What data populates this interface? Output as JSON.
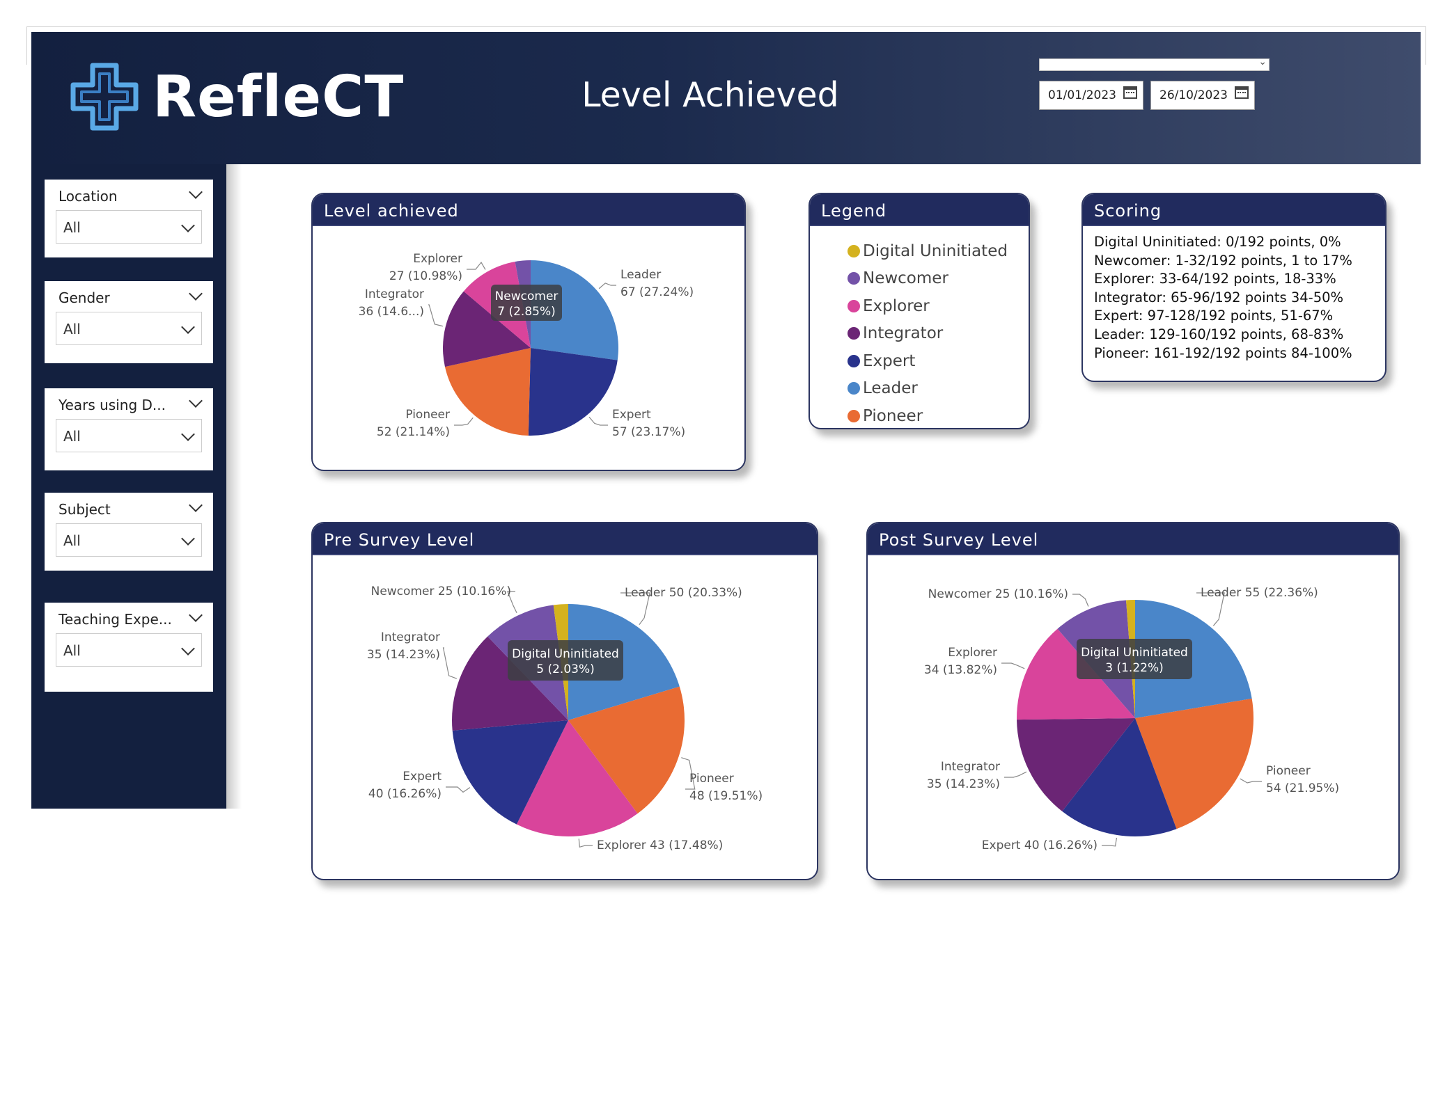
{
  "header": {
    "logo_text": "RefleCT",
    "title": "Level Achieved",
    "date_start": "01/01/2023",
    "date_end": "26/10/2023"
  },
  "slicers": [
    {
      "label": "Location",
      "value": "All"
    },
    {
      "label": "Gender",
      "value": "All"
    },
    {
      "label": "Years using D...",
      "value": "All"
    },
    {
      "label": "Subject",
      "value": "All"
    },
    {
      "label": "Teaching Expe...",
      "value": "All"
    }
  ],
  "colors": {
    "Digital Uninitiated": "#d4b21f",
    "Newcomer": "#7352a8",
    "Explorer": "#d9449b",
    "Integrator": "#6b2575",
    "Expert": "#29338c",
    "Leader": "#4a86c9",
    "Pioneer": "#e96b33"
  },
  "legend": {
    "title": "Legend",
    "items": [
      "Digital Uninitiated",
      "Newcomer",
      "Explorer",
      "Integrator",
      "Expert",
      "Leader",
      "Pioneer"
    ]
  },
  "scoring": {
    "title": "Scoring",
    "lines": [
      "Digital Uninitiated: 0/192 points, 0%",
      "Newcomer: 1-32/192 points, 1 to 17%",
      "Explorer: 33-64/192 points, 18-33%",
      "Integrator: 65-96/192 points 34-50%",
      "Expert: 97-128/192 points, 51-67%",
      "Leader: 129-160/192 points, 68-83%",
      "Pioneer: 161-192/192 points 84-100%"
    ]
  },
  "chart_data": [
    {
      "type": "pie",
      "title": "Level achieved",
      "slices": [
        {
          "name": "Leader",
          "value": 67,
          "pct": "27.24%"
        },
        {
          "name": "Expert",
          "value": 57,
          "pct": "23.17%"
        },
        {
          "name": "Pioneer",
          "value": 52,
          "pct": "21.14%"
        },
        {
          "name": "Integrator",
          "value": 36,
          "pct": "14.6..."
        },
        {
          "name": "Explorer",
          "value": 27,
          "pct": "10.98%"
        },
        {
          "name": "Newcomer",
          "value": 7,
          "pct": "2.85%"
        }
      ],
      "tooltip": {
        "line1": "Newcomer",
        "line2": "7 (2.85%)"
      }
    },
    {
      "type": "pie",
      "title": "Pre Survey Level",
      "slices": [
        {
          "name": "Leader",
          "value": 50,
          "pct": "20.33%"
        },
        {
          "name": "Pioneer",
          "value": 48,
          "pct": "19.51%"
        },
        {
          "name": "Explorer",
          "value": 43,
          "pct": "17.48%"
        },
        {
          "name": "Expert",
          "value": 40,
          "pct": "16.26%"
        },
        {
          "name": "Integrator",
          "value": 35,
          "pct": "14.23%"
        },
        {
          "name": "Newcomer",
          "value": 25,
          "pct": "10.16%"
        },
        {
          "name": "Digital Uninitiated",
          "value": 5,
          "pct": "2.03%"
        }
      ],
      "tooltip": {
        "line1": "Digital Uninitiated",
        "line2": "5 (2.03%)"
      }
    },
    {
      "type": "pie",
      "title": "Post Survey Level",
      "slices": [
        {
          "name": "Leader",
          "value": 55,
          "pct": "22.36%"
        },
        {
          "name": "Pioneer",
          "value": 54,
          "pct": "21.95%"
        },
        {
          "name": "Expert",
          "value": 40,
          "pct": "16.26%"
        },
        {
          "name": "Integrator",
          "value": 35,
          "pct": "14.23%"
        },
        {
          "name": "Explorer",
          "value": 34,
          "pct": "13.82%"
        },
        {
          "name": "Newcomer",
          "value": 25,
          "pct": "10.16%"
        },
        {
          "name": "Digital Uninitiated",
          "value": 3,
          "pct": "1.22%"
        }
      ],
      "tooltip": {
        "line1": "Digital Uninitiated",
        "line2": "3 (1.22%)"
      }
    }
  ]
}
